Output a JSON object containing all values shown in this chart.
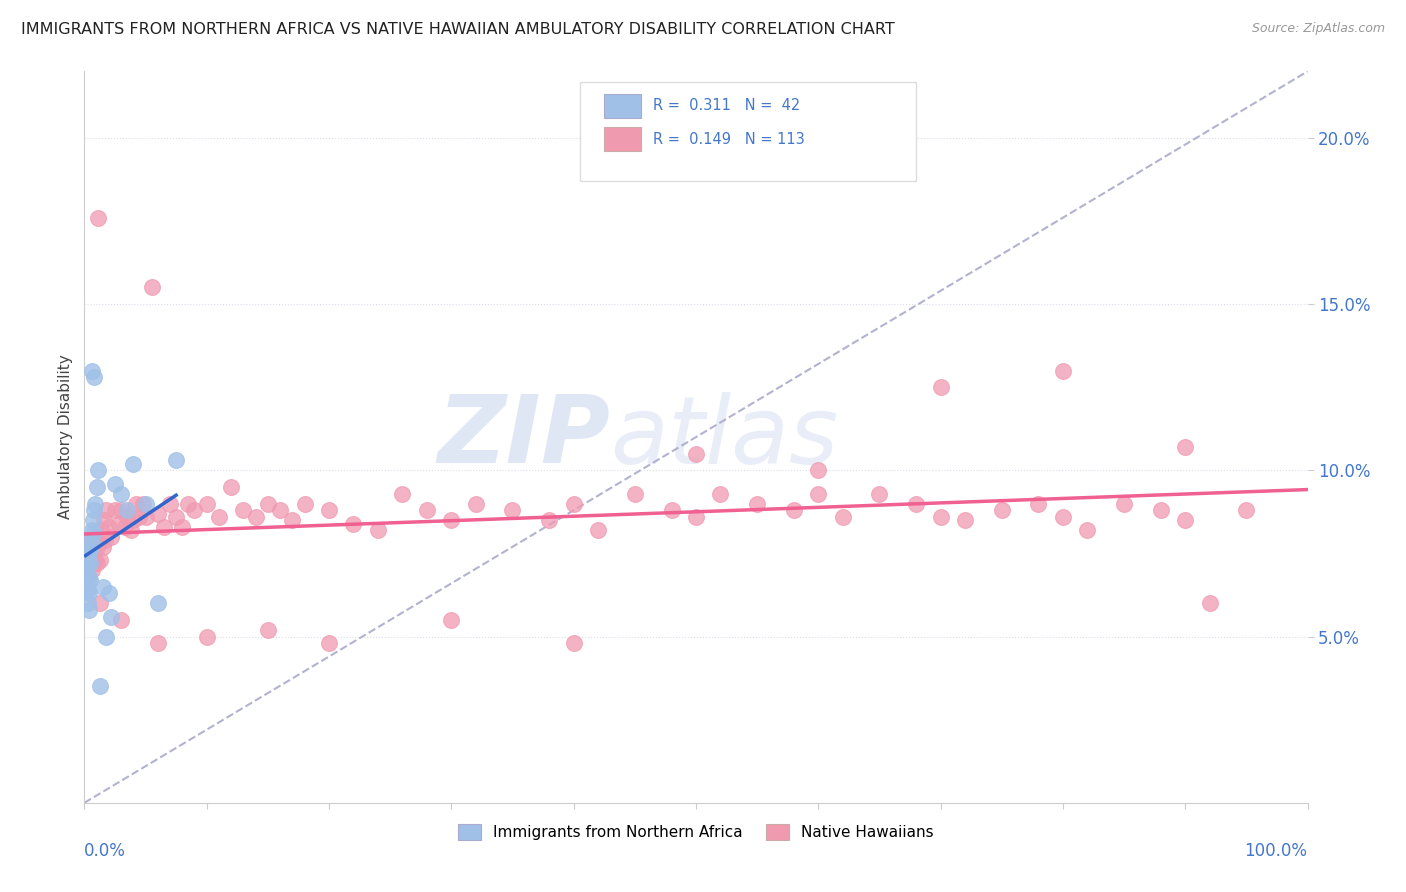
{
  "title": "IMMIGRANTS FROM NORTHERN AFRICA VS NATIVE HAWAIIAN AMBULATORY DISABILITY CORRELATION CHART",
  "source": "Source: ZipAtlas.com",
  "ylabel": "Ambulatory Disability",
  "legend_label_blue": "Immigrants from Northern Africa",
  "legend_label_pink": "Native Hawaiians",
  "yticks": [
    0.05,
    0.1,
    0.15,
    0.2
  ],
  "ytick_labels": [
    "5.0%",
    "10.0%",
    "15.0%",
    "20.0%"
  ],
  "xlim": [
    0.0,
    1.0
  ],
  "ylim": [
    0.0,
    0.22
  ],
  "blue_scatter_color": "#a0c0e8",
  "pink_scatter_color": "#f09ab0",
  "blue_line_color": "#3366cc",
  "pink_line_color": "#f06090",
  "dash_line_color": "#aaaacc",
  "watermark_color": "#c8d4ec",
  "tick_label_color": "#4477cc",
  "blue_x": [
    0.001,
    0.001,
    0.002,
    0.002,
    0.002,
    0.002,
    0.003,
    0.003,
    0.003,
    0.003,
    0.003,
    0.004,
    0.004,
    0.004,
    0.004,
    0.004,
    0.005,
    0.005,
    0.005,
    0.005,
    0.006,
    0.006,
    0.006,
    0.007,
    0.007,
    0.008,
    0.008,
    0.009,
    0.01,
    0.011,
    0.013,
    0.015,
    0.018,
    0.02,
    0.022,
    0.025,
    0.03,
    0.035,
    0.04,
    0.05,
    0.06,
    0.075
  ],
  "blue_y": [
    0.07,
    0.068,
    0.075,
    0.073,
    0.069,
    0.065,
    0.074,
    0.072,
    0.068,
    0.064,
    0.06,
    0.076,
    0.072,
    0.068,
    0.063,
    0.058,
    0.079,
    0.076,
    0.072,
    0.067,
    0.082,
    0.078,
    0.13,
    0.085,
    0.081,
    0.088,
    0.128,
    0.09,
    0.095,
    0.1,
    0.035,
    0.065,
    0.05,
    0.063,
    0.056,
    0.096,
    0.093,
    0.088,
    0.102,
    0.09,
    0.06,
    0.103
  ],
  "pink_x": [
    0.001,
    0.001,
    0.002,
    0.002,
    0.003,
    0.003,
    0.004,
    0.004,
    0.005,
    0.005,
    0.006,
    0.006,
    0.007,
    0.007,
    0.008,
    0.008,
    0.009,
    0.009,
    0.01,
    0.01,
    0.011,
    0.012,
    0.013,
    0.014,
    0.015,
    0.016,
    0.017,
    0.018,
    0.02,
    0.022,
    0.025,
    0.028,
    0.03,
    0.033,
    0.035,
    0.038,
    0.04,
    0.042,
    0.045,
    0.048,
    0.05,
    0.055,
    0.06,
    0.065,
    0.07,
    0.075,
    0.08,
    0.085,
    0.09,
    0.1,
    0.11,
    0.12,
    0.13,
    0.14,
    0.15,
    0.16,
    0.17,
    0.18,
    0.2,
    0.22,
    0.24,
    0.26,
    0.28,
    0.3,
    0.32,
    0.35,
    0.38,
    0.4,
    0.42,
    0.45,
    0.48,
    0.5,
    0.52,
    0.55,
    0.58,
    0.6,
    0.62,
    0.65,
    0.68,
    0.7,
    0.72,
    0.75,
    0.78,
    0.8,
    0.82,
    0.85,
    0.88,
    0.9,
    0.92,
    0.95,
    0.013,
    0.03,
    0.06,
    0.1,
    0.15,
    0.2,
    0.3,
    0.4,
    0.5,
    0.6,
    0.7,
    0.8,
    0.9
  ],
  "pink_y": [
    0.074,
    0.07,
    0.076,
    0.072,
    0.075,
    0.071,
    0.078,
    0.073,
    0.079,
    0.074,
    0.075,
    0.07,
    0.077,
    0.072,
    0.08,
    0.074,
    0.079,
    0.073,
    0.077,
    0.072,
    0.176,
    0.078,
    0.073,
    0.082,
    0.077,
    0.085,
    0.079,
    0.088,
    0.083,
    0.08,
    0.088,
    0.084,
    0.088,
    0.083,
    0.086,
    0.082,
    0.085,
    0.09,
    0.086,
    0.09,
    0.086,
    0.155,
    0.087,
    0.083,
    0.09,
    0.086,
    0.083,
    0.09,
    0.088,
    0.09,
    0.086,
    0.095,
    0.088,
    0.086,
    0.09,
    0.088,
    0.085,
    0.09,
    0.088,
    0.084,
    0.082,
    0.093,
    0.088,
    0.085,
    0.09,
    0.088,
    0.085,
    0.09,
    0.082,
    0.093,
    0.088,
    0.086,
    0.093,
    0.09,
    0.088,
    0.093,
    0.086,
    0.093,
    0.09,
    0.086,
    0.085,
    0.088,
    0.09,
    0.086,
    0.082,
    0.09,
    0.088,
    0.085,
    0.06,
    0.088,
    0.06,
    0.055,
    0.048,
    0.05,
    0.052,
    0.048,
    0.055,
    0.048,
    0.105,
    0.1,
    0.125,
    0.13,
    0.107
  ]
}
